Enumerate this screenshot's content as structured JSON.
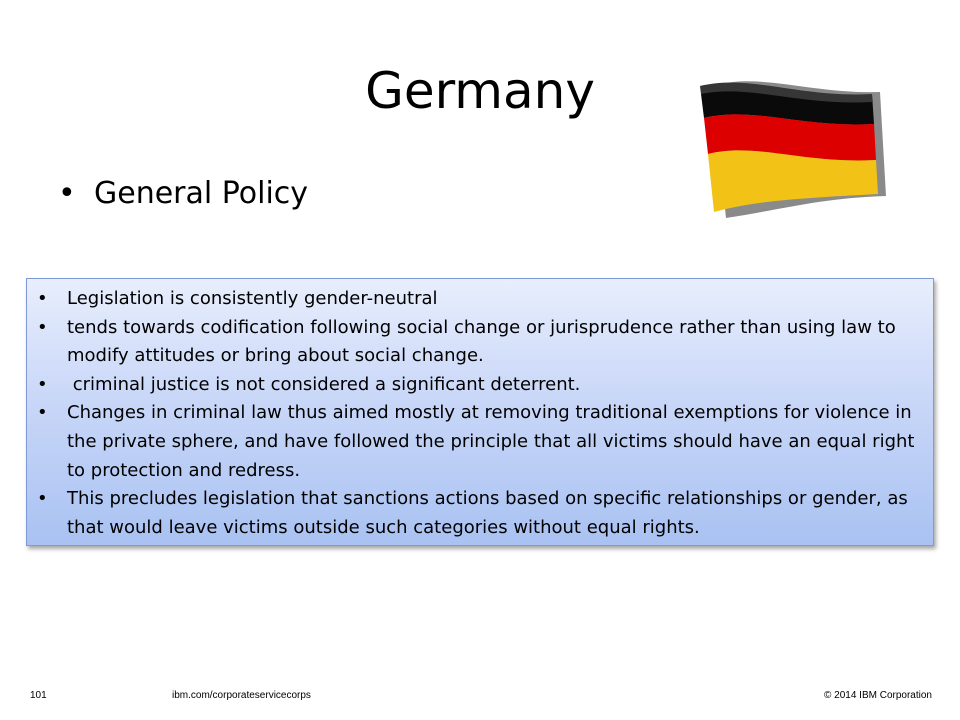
{
  "slide": {
    "title": "Germany",
    "top_bullet": "General Policy",
    "flag_colors": [
      "#000000",
      "#dd0000",
      "#ffce00"
    ]
  },
  "box": {
    "bullets": [
      "Legislation is consistently gender-neutral",
      "tends towards codification following social change or jurisprudence rather than using law to modify attitudes or bring about social change.",
      " criminal justice is not considered a significant deterrent.",
      "Changes in criminal law thus aimed mostly at removing traditional exemptions for violence in the private sphere, and have followed the principle that all victims should have an equal right to protection and redress.",
      "This precludes legislation that sanctions actions based on specific relationships or gender, as that would leave victims outside such categories without equal rights."
    ]
  },
  "footer": {
    "page_number": "101",
    "url": "ibm.com/corporateservicecorps",
    "copyright": "© 2014 IBM  Corporation"
  }
}
